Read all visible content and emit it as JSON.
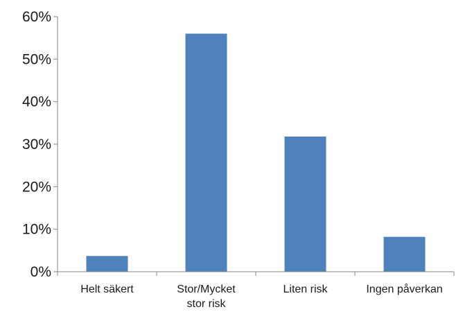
{
  "chart_data": {
    "type": "bar",
    "title": "",
    "xlabel": "",
    "ylabel": "",
    "categories": [
      [
        "Helt säkert"
      ],
      [
        "Stor/Mycket",
        "stor risk"
      ],
      [
        "Liten risk"
      ],
      [
        "Ingen påverkan"
      ]
    ],
    "values": [
      3.7,
      56,
      31.8,
      8.2
    ],
    "unit": "%",
    "ylim": [
      0,
      60
    ],
    "yticks": [
      0,
      10,
      20,
      30,
      40,
      50,
      60
    ],
    "ytick_labels": [
      "0%",
      "10%",
      "20%",
      "30%",
      "40%",
      "50%",
      "60%"
    ],
    "grid": false,
    "legend": "none",
    "colors": {
      "bar": "#4f81bd",
      "axis": "#868686"
    }
  }
}
